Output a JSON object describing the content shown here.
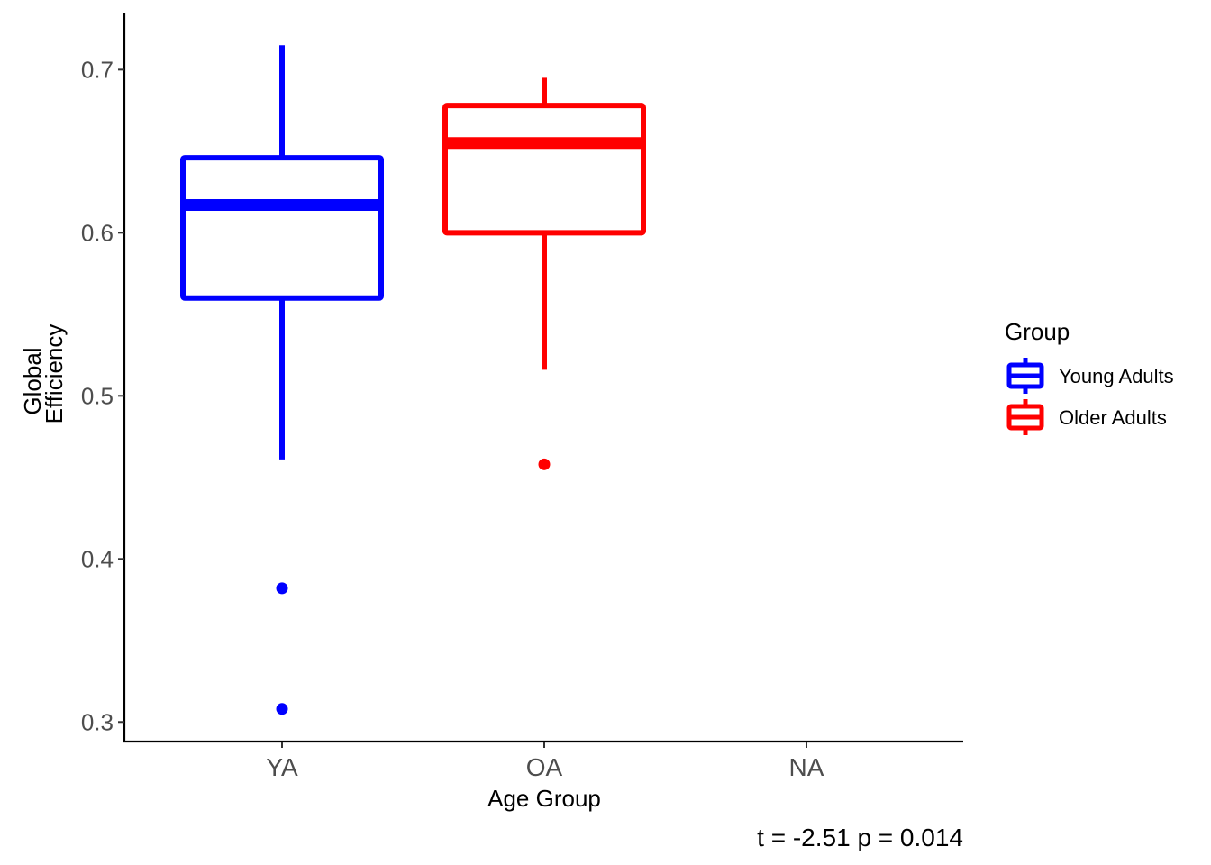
{
  "chart_data": {
    "type": "boxplot",
    "xlabel": "Age Group",
    "ylabel_lines": [
      "Global",
      "Efficiency"
    ],
    "categories": [
      "YA",
      "OA",
      "NA"
    ],
    "ylim": [
      0.288,
      0.735
    ],
    "yticks": [
      0.3,
      0.4,
      0.5,
      0.6,
      0.7
    ],
    "ytick_labels": [
      "0.3",
      "0.4",
      "0.5",
      "0.6",
      "0.7"
    ],
    "grid": false,
    "series": [
      {
        "name": "Young Adults",
        "category": "YA",
        "color": "#0000ff",
        "whisker_low": 0.461,
        "q1": 0.56,
        "median": 0.617,
        "q3": 0.646,
        "whisker_high": 0.715,
        "outliers": [
          0.382,
          0.308
        ]
      },
      {
        "name": "Older Adults",
        "category": "OA",
        "color": "#ff0000",
        "whisker_low": 0.516,
        "q1": 0.6,
        "median": 0.655,
        "q3": 0.678,
        "whisker_high": 0.695,
        "outliers": [
          0.458
        ]
      }
    ],
    "legend": {
      "title": "Group",
      "position": "right",
      "entries": [
        "Young Adults",
        "Older Adults"
      ]
    },
    "caption": "t =  -2.51 p =  0.014"
  }
}
